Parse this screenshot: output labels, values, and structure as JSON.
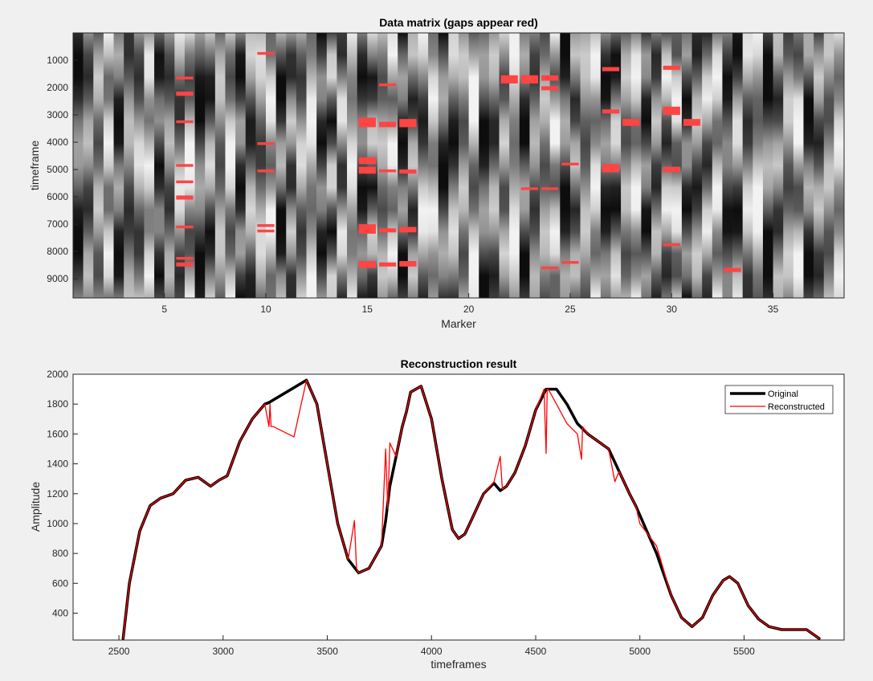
{
  "colors": {
    "background": "#f0f0f0",
    "gap": "#ff4444",
    "original": "#000000",
    "reconstructed": "#ff0000"
  },
  "chart_data": [
    {
      "type": "heatmap",
      "title": "Data matrix (gaps appear red)",
      "xlabel": "Marker",
      "ylabel": "timeframe",
      "xlim": [
        0.5,
        38.5
      ],
      "ylim": [
        0,
        9700
      ],
      "y_reversed": true,
      "colormap": "gray",
      "xticks": [
        5,
        10,
        15,
        20,
        25,
        30,
        35
      ],
      "yticks": [
        1000,
        2000,
        3000,
        4000,
        5000,
        6000,
        7000,
        8000,
        9000
      ],
      "gap_color": "red",
      "gaps": [
        {
          "marker": 6,
          "timeframes": [
            [
              1600,
              1700
            ],
            [
              2150,
              2300
            ],
            [
              3200,
              3300
            ],
            [
              4800,
              4900
            ],
            [
              5400,
              5500
            ],
            [
              5950,
              6100
            ],
            [
              7050,
              7150
            ],
            [
              8200,
              8300
            ],
            [
              8400,
              8550
            ]
          ]
        },
        {
          "marker": 10,
          "timeframes": [
            [
              700,
              800
            ],
            [
              4000,
              4100
            ],
            [
              5000,
              5100
            ],
            [
              7000,
              7100
            ],
            [
              7200,
              7300
            ]
          ]
        },
        {
          "marker": 15,
          "timeframes": [
            [
              3100,
              3450
            ],
            [
              4550,
              4800
            ],
            [
              4900,
              5150
            ],
            [
              7000,
              7350
            ],
            [
              8350,
              8600
            ]
          ]
        },
        {
          "marker": 16,
          "timeframes": [
            [
              1850,
              1950
            ],
            [
              3250,
              3450
            ],
            [
              5000,
              5100
            ],
            [
              7150,
              7300
            ],
            [
              8400,
              8550
            ]
          ]
        },
        {
          "marker": 17,
          "timeframes": [
            [
              3150,
              3450
            ],
            [
              5000,
              5150
            ],
            [
              7100,
              7300
            ],
            [
              8350,
              8550
            ]
          ]
        },
        {
          "marker": 22,
          "timeframes": [
            [
              1550,
              1850
            ]
          ]
        },
        {
          "marker": 23,
          "timeframes": [
            [
              1550,
              1850
            ],
            [
              5650,
              5750
            ]
          ]
        },
        {
          "marker": 24,
          "timeframes": [
            [
              1550,
              1750
            ],
            [
              1950,
              2100
            ],
            [
              5650,
              5750
            ],
            [
              8550,
              8650
            ]
          ]
        },
        {
          "marker": 25,
          "timeframes": [
            [
              4750,
              4850
            ],
            [
              8350,
              8450
            ]
          ]
        },
        {
          "marker": 27,
          "timeframes": [
            [
              1250,
              1400
            ],
            [
              2800,
              2950
            ],
            [
              4800,
              5100
            ]
          ]
        },
        {
          "marker": 28,
          "timeframes": [
            [
              3150,
              3400
            ]
          ]
        },
        {
          "marker": 30,
          "timeframes": [
            [
              1200,
              1350
            ],
            [
              2700,
              3000
            ],
            [
              4900,
              5100
            ],
            [
              7700,
              7800
            ]
          ]
        },
        {
          "marker": 31,
          "timeframes": [
            [
              3150,
              3400
            ]
          ]
        },
        {
          "marker": 33,
          "timeframes": [
            [
              8600,
              8750
            ]
          ]
        }
      ]
    },
    {
      "type": "line",
      "title": "Reconstruction result",
      "xlabel": "timeframes",
      "ylabel": "Amplitude",
      "xlim": [
        2280,
        5980
      ],
      "ylim": [
        220,
        2000
      ],
      "xticks": [
        2500,
        3000,
        3500,
        4000,
        4500,
        5000,
        5500
      ],
      "yticks": [
        400,
        600,
        800,
        1000,
        1200,
        1400,
        1600,
        1800,
        2000
      ],
      "legend": {
        "position": "top-right",
        "entries": [
          "Original",
          "Reconstructed"
        ]
      },
      "series": [
        {
          "name": "Original",
          "x": [
            2520,
            2550,
            2600,
            2650,
            2700,
            2760,
            2820,
            2880,
            2940,
            2980,
            3020,
            3080,
            3140,
            3200,
            3220,
            3400,
            3450,
            3500,
            3550,
            3600,
            3650,
            3700,
            3760,
            3780,
            3800,
            3830,
            3860,
            3880,
            3900,
            3950,
            4000,
            4050,
            4100,
            4130,
            4160,
            4200,
            4250,
            4300,
            4330,
            4360,
            4400,
            4450,
            4500,
            4550,
            4600,
            4650,
            4700,
            4750,
            4800,
            4850,
            4900,
            4950,
            4980,
            5080,
            5150,
            5200,
            5250,
            5300,
            5350,
            5400,
            5430,
            5470,
            5520,
            5570,
            5620,
            5680,
            5740,
            5800,
            5860
          ],
          "y": [
            230,
            600,
            950,
            1120,
            1170,
            1200,
            1290,
            1310,
            1250,
            1290,
            1320,
            1550,
            1700,
            1800,
            1810,
            1960,
            1800,
            1400,
            1000,
            760,
            670,
            700,
            850,
            1020,
            1250,
            1450,
            1650,
            1750,
            1880,
            1920,
            1700,
            1300,
            960,
            900,
            930,
            1050,
            1200,
            1270,
            1220,
            1250,
            1340,
            1520,
            1760,
            1900,
            1900,
            1800,
            1670,
            1600,
            1550,
            1500,
            1350,
            1200,
            1120,
            800,
            520,
            370,
            310,
            370,
            520,
            620,
            645,
            600,
            450,
            360,
            310,
            290,
            290,
            290,
            230
          ]
        },
        {
          "name": "Reconstructed",
          "x": [
            2520,
            2550,
            2600,
            2650,
            2700,
            2760,
            2820,
            2880,
            2940,
            2980,
            3020,
            3080,
            3140,
            3200,
            3220,
            3225,
            3230,
            3240,
            3340,
            3400,
            3450,
            3500,
            3550,
            3600,
            3630,
            3640,
            3650,
            3700,
            3760,
            3780,
            3790,
            3800,
            3830,
            3860,
            3880,
            3900,
            3950,
            4000,
            4050,
            4100,
            4130,
            4160,
            4200,
            4250,
            4300,
            4330,
            4340,
            4360,
            4400,
            4450,
            4500,
            4540,
            4550,
            4555,
            4560,
            4600,
            4650,
            4700,
            4720,
            4725,
            4750,
            4800,
            4850,
            4880,
            4900,
            4950,
            4980,
            5000,
            5080,
            5150,
            5200,
            5250,
            5300,
            5350,
            5400,
            5430,
            5470,
            5520,
            5570,
            5620,
            5680,
            5740,
            5800,
            5860
          ],
          "y": [
            230,
            600,
            950,
            1120,
            1170,
            1200,
            1290,
            1310,
            1250,
            1290,
            1320,
            1550,
            1700,
            1800,
            1650,
            1800,
            1650,
            1650,
            1580,
            1960,
            1800,
            1400,
            1000,
            760,
            1020,
            700,
            670,
            700,
            850,
            1500,
            1100,
            1540,
            1450,
            1650,
            1750,
            1880,
            1920,
            1700,
            1300,
            960,
            900,
            930,
            1050,
            1200,
            1280,
            1450,
            1230,
            1250,
            1340,
            1520,
            1760,
            1900,
            1470,
            1900,
            1900,
            1800,
            1670,
            1600,
            1430,
            1650,
            1600,
            1550,
            1500,
            1280,
            1350,
            1200,
            1120,
            1000,
            850,
            520,
            370,
            310,
            370,
            520,
            620,
            645,
            600,
            450,
            360,
            310,
            290,
            290,
            290,
            230
          ]
        }
      ]
    }
  ]
}
